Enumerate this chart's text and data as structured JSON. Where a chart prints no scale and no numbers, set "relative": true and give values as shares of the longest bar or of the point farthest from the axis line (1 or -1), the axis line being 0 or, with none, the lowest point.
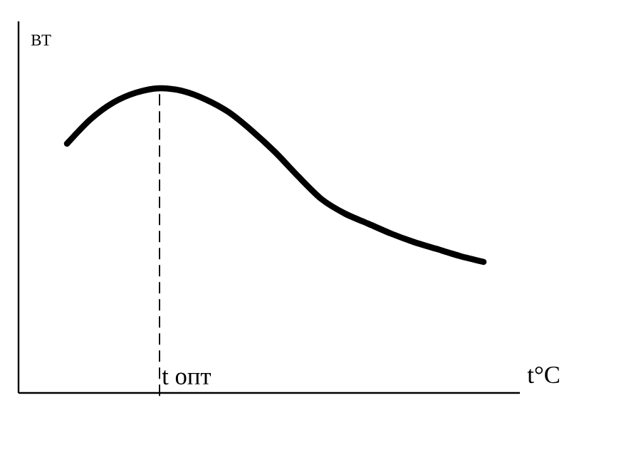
{
  "chart_data": {
    "type": "line",
    "relative": true,
    "xlabel": "t°C",
    "ylabel": "ВТ",
    "categories": [
      null,
      null,
      null,
      null,
      null,
      null,
      null,
      null,
      null,
      null,
      null,
      null,
      null,
      null,
      null,
      null,
      null,
      null,
      null
    ],
    "series": [
      {
        "color": "#000000",
        "values": [
          0.818,
          0.897,
          0.953,
          0.986,
          1,
          0.991,
          0.963,
          0.921,
          0.86,
          0.79,
          0.71,
          0.636,
          0.589,
          0.556,
          0.523,
          0.495,
          0.472,
          0.449,
          0.43
        ]
      }
    ],
    "annotations": [
      "t опт"
    ],
    "marker": "none",
    "line_style": "solid"
  }
}
